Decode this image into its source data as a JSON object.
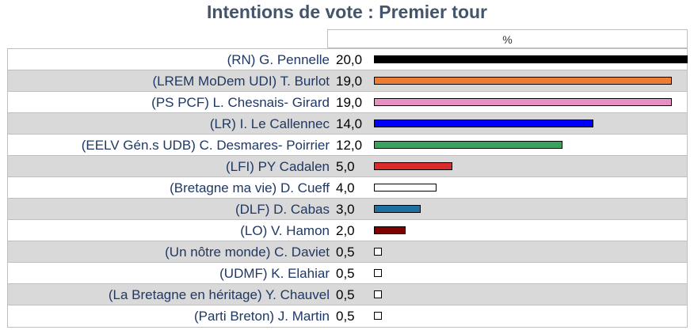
{
  "chart_data": {
    "type": "bar",
    "title": "Intentions de vote : Premier tour",
    "unit_header": "%",
    "categories": [
      "(RN) G. Pennelle",
      "(LREM MoDem UDI) T. Burlot",
      "(PS PCF) L. Chesnais- Girard",
      "(LR) I. Le Callennec",
      "(EELV Gén.s UDB) C. Desmares- Poirrier",
      "(LFI) PY Cadalen",
      "(Bretagne ma vie) D. Cueff",
      "(DLF) D. Cabas",
      "(LO) V. Hamon",
      "(Un nôtre monde) C. Daviet",
      "(UDMF) K. Elahiar",
      "(La Bretagne en héritage) Y. Chauvel",
      "(Parti Breton) J. Martin"
    ],
    "values": [
      20.0,
      19.0,
      19.0,
      14.0,
      12.0,
      5.0,
      4.0,
      3.0,
      2.0,
      0.5,
      0.5,
      0.5,
      0.5
    ],
    "value_labels": [
      "20,0",
      "19,0",
      "19,0",
      "14,0",
      "12,0",
      "5,0",
      "4,0",
      "3,0",
      "2,0",
      "0,5",
      "0,5",
      "0,5",
      "0,5"
    ],
    "colors": [
      "#000000",
      "#ed7d31",
      "#e691c3",
      "#0000ff",
      "#3ca060",
      "#d92b2b",
      "#ffffff",
      "#1f6fa0",
      "#800000",
      "#ffffff",
      "#ffffff",
      "#ffffff",
      "#ffffff"
    ],
    "xlim": [
      0,
      20
    ]
  }
}
